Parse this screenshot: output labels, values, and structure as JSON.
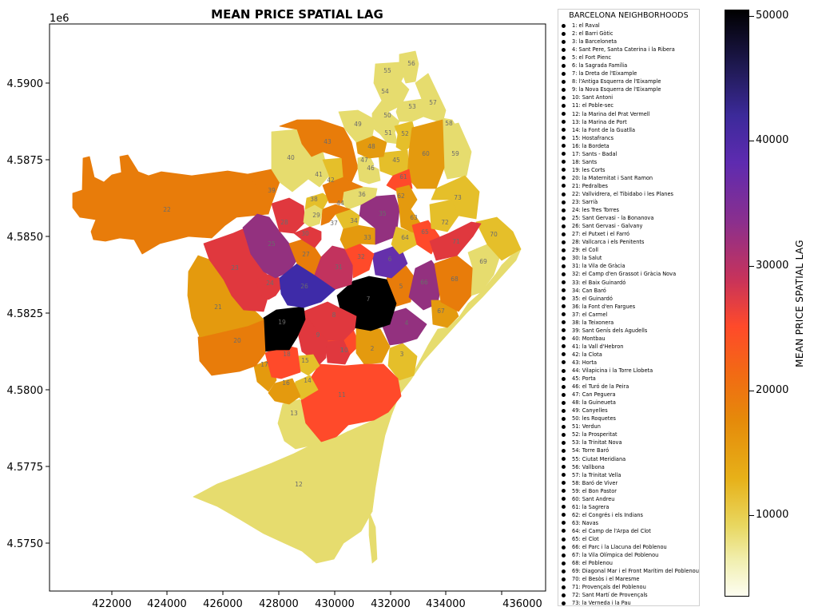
{
  "title": "MEAN PRICE SPATIAL LAG",
  "y_offset_label": "1e6",
  "x_ticks": [
    "422000",
    "424000",
    "426000",
    "428000",
    "430000",
    "432000",
    "434000",
    "436000"
  ],
  "y_ticks": [
    "4.5900",
    "4.5875",
    "4.5850",
    "4.5825",
    "4.5800",
    "4.5775",
    "4.5750"
  ],
  "colors": {
    "c0": "#e6dc6e",
    "c1": "#e5bf2a",
    "c2": "#e49a0e",
    "c3": "#e87c0a",
    "c4": "#ff4a2a",
    "c5": "#e0383e",
    "c6": "#c2335e",
    "c7": "#93317f",
    "c8": "#6530ab",
    "c9": "#3e2ba8",
    "c10": "#000000"
  },
  "legend": {
    "title": "BARCELONA NEIGHBORHOODS",
    "items": [
      "1: el Raval",
      "2: el Barri Gòtic",
      "3: la Barceloneta",
      "4: Sant Pere, Santa Caterina i la Ribera",
      "5: el Fort Pienc",
      "6: la Sagrada Família",
      "7: la Dreta de l'Eixample",
      "8: l'Antiga Esquerra de l'Eixample",
      "9: la Nova Esquerra de l'Eixample",
      "10: Sant Antoni",
      "11: el Poble-sec",
      "12: la Marina del Prat Vermell",
      "13: la Marina de Port",
      "14: la Font de la Guatlla",
      "15: Hostafrancs",
      "16: la Bordeta",
      "17: Sants - Badal",
      "18: Sants",
      "19: les Corts",
      "20: la Maternitat i Sant Ramon",
      "21: Pedralbes",
      "22: Vallvidrera, el Tibidabo i les Planes",
      "23: Sarrià",
      "24: les Tres Torres",
      "25: Sant Gervasi - la Bonanova",
      "26: Sant Gervasi - Galvany",
      "27: el Putxet i el Farró",
      "28: Vallcarca i els Penitents",
      "29: el Coll",
      "30: la Salut",
      "31: la Vila de Gràcia",
      "32: el Camp d'en Grassot i Gràcia Nova",
      "33: el Baix Guinardó",
      "34: Can Baró",
      "35: el Guinardó",
      "36: la Font d'en Fargues",
      "37: el Carmel",
      "38: la Teixonera",
      "39: Sant Genís dels Agudells",
      "40: Montbau",
      "41: la Vall d'Hebron",
      "42: la Clota",
      "43: Horta",
      "44: Vilapicina i la Torre Llobeta",
      "45: Porta",
      "46: el Turó de la Peira",
      "47: Can Peguera",
      "48: la Guineueta",
      "49: Canyelles",
      "50: les Roquetes",
      "51: Verdun",
      "52: la Prosperitat",
      "53: la Trinitat Nova",
      "54: Torre Baró",
      "55: Ciutat Meridiana",
      "56: Vallbona",
      "57: la Trinitat Vella",
      "58: Baró de Viver",
      "59: el Bon Pastor",
      "60: Sant Andreu",
      "61: la Sagrera",
      "62: el Congrés i els Indians",
      "63: Navas",
      "64: el Camp de l'Arpa del Clot",
      "65: el Clot",
      "66: el Parc i la Llacuna del Poblenou",
      "67: la Vila Olímpica del Poblenou",
      "68: el Poblenou",
      "69: Diagonal Mar i el Front Marítim del Poblenou",
      "70: el Besòs i el Maresme",
      "71: Provençals del Poblenou",
      "72: Sant Martí de Provençals",
      "73: la Verneda i la Pau"
    ]
  },
  "colorbar": {
    "label": "MEAN PRICE SPATIAL LAG",
    "ticks": [
      "50000",
      "40000",
      "30000",
      "20000",
      "10000"
    ],
    "tick_values": [
      50000,
      40000,
      30000,
      20000,
      10000
    ],
    "vmin": 3500,
    "vmax": 50500
  },
  "neighborhoods": [
    {
      "id": "1",
      "label": "1",
      "color": "c4"
    },
    {
      "id": "2",
      "label": "2",
      "color": "c2"
    },
    {
      "id": "3",
      "label": "3",
      "color": "c1"
    },
    {
      "id": "4",
      "label": "4",
      "color": "c7"
    },
    {
      "id": "5",
      "label": "5",
      "color": "c3"
    },
    {
      "id": "6",
      "label": "6",
      "color": "c8"
    },
    {
      "id": "7",
      "label": "7",
      "color": "c10"
    },
    {
      "id": "8",
      "label": "8",
      "color": "c5"
    },
    {
      "id": "9",
      "label": "9",
      "color": "c5"
    },
    {
      "id": "10",
      "label": "10",
      "color": "c5"
    },
    {
      "id": "11",
      "label": "11",
      "color": "c4"
    },
    {
      "id": "12",
      "label": "12",
      "color": "c0"
    },
    {
      "id": "13",
      "label": "13",
      "color": "c0"
    },
    {
      "id": "14",
      "label": "14",
      "color": "c1"
    },
    {
      "id": "15",
      "label": "15",
      "color": "c1"
    },
    {
      "id": "16",
      "label": "16",
      "color": "c2"
    },
    {
      "id": "17",
      "label": "17",
      "color": "c2"
    },
    {
      "id": "18",
      "label": "18",
      "color": "c4"
    },
    {
      "id": "19",
      "label": "19",
      "color": "c10"
    },
    {
      "id": "20",
      "label": "20",
      "color": "c3"
    },
    {
      "id": "21",
      "label": "21",
      "color": "c2"
    },
    {
      "id": "22",
      "label": "22",
      "color": "c3"
    },
    {
      "id": "23",
      "label": "23",
      "color": "c5"
    },
    {
      "id": "24",
      "label": "24",
      "color": "c5"
    },
    {
      "id": "25",
      "label": "25",
      "color": "c7"
    },
    {
      "id": "26",
      "label": "26",
      "color": "c9"
    },
    {
      "id": "27",
      "label": "27",
      "color": "c3"
    },
    {
      "id": "28",
      "label": "28",
      "color": "c5"
    },
    {
      "id": "29",
      "label": "29",
      "color": "c0"
    },
    {
      "id": "30",
      "label": "30",
      "color": "c5"
    },
    {
      "id": "31",
      "label": "31",
      "color": "c6"
    },
    {
      "id": "32",
      "label": "32",
      "color": "c4"
    },
    {
      "id": "33",
      "label": "33",
      "color": "c2"
    },
    {
      "id": "34",
      "label": "34",
      "color": "c1"
    },
    {
      "id": "35",
      "label": "35",
      "color": "c7"
    },
    {
      "id": "36",
      "label": "36",
      "color": "c0"
    },
    {
      "id": "37",
      "label": "37",
      "color": "c3"
    },
    {
      "id": "38",
      "label": "38",
      "color": "c1"
    },
    {
      "id": "39",
      "label": "39",
      "color": "c3"
    },
    {
      "id": "40",
      "label": "40",
      "color": "c0"
    },
    {
      "id": "41",
      "label": "41",
      "color": "c0"
    },
    {
      "id": "42",
      "label": "42",
      "color": "c1"
    },
    {
      "id": "43",
      "label": "43",
      "color": "c3"
    },
    {
      "id": "44",
      "label": "44",
      "color": "c3"
    },
    {
      "id": "45",
      "label": "45",
      "color": "c1"
    },
    {
      "id": "46",
      "label": "46",
      "color": "c0"
    },
    {
      "id": "47",
      "label": "47",
      "color": "c0"
    },
    {
      "id": "48",
      "label": "48",
      "color": "c2"
    },
    {
      "id": "49",
      "label": "49",
      "color": "c0"
    },
    {
      "id": "50",
      "label": "50",
      "color": "c0"
    },
    {
      "id": "51",
      "label": "51",
      "color": "c0"
    },
    {
      "id": "52",
      "label": "52",
      "color": "c1"
    },
    {
      "id": "53",
      "label": "53",
      "color": "c0"
    },
    {
      "id": "54",
      "label": "54",
      "color": "c0"
    },
    {
      "id": "55",
      "label": "55",
      "color": "c0"
    },
    {
      "id": "56",
      "label": "56",
      "color": "c0"
    },
    {
      "id": "57",
      "label": "57",
      "color": "c0"
    },
    {
      "id": "58",
      "label": "58",
      "color": "c0"
    },
    {
      "id": "59",
      "label": "59",
      "color": "c0"
    },
    {
      "id": "60",
      "label": "60",
      "color": "c2"
    },
    {
      "id": "61",
      "label": "61",
      "color": "c4"
    },
    {
      "id": "62",
      "label": "62",
      "color": "c2"
    },
    {
      "id": "63",
      "label": "63",
      "color": "c2"
    },
    {
      "id": "64",
      "label": "64",
      "color": "c1"
    },
    {
      "id": "65",
      "label": "65",
      "color": "c4"
    },
    {
      "id": "66",
      "label": "66",
      "color": "c7"
    },
    {
      "id": "67",
      "label": "67",
      "color": "c2"
    },
    {
      "id": "68",
      "label": "68",
      "color": "c3"
    },
    {
      "id": "69",
      "label": "69",
      "color": "c0"
    },
    {
      "id": "70",
      "label": "70",
      "color": "c1"
    },
    {
      "id": "71",
      "label": "71",
      "color": "c5"
    },
    {
      "id": "72",
      "label": "72",
      "color": "c1"
    },
    {
      "id": "73",
      "label": "73",
      "color": "c1"
    }
  ]
}
